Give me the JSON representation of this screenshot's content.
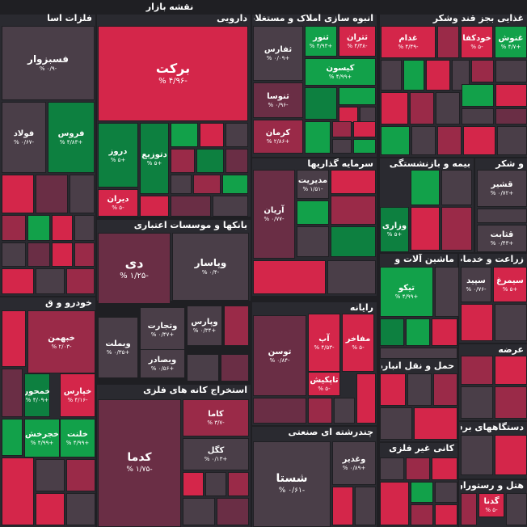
{
  "page_title": "نقشه بازار",
  "chart_data": {
    "type": "treemap",
    "colors": {
      "background": "#1f1f23",
      "neutral": "#4a3e48",
      "neg_strong": "#d4264a",
      "neg_mid": "#9a2a48",
      "neg_weak": "#6a2e45",
      "pos_strong": "#12a14a",
      "pos_mid": "#0d8040"
    },
    "sectors": [
      {
        "name": "فلزات اسا"
      },
      {
        "name": "دارویی"
      },
      {
        "name": "انبوه سازی املاک و مستغلات"
      },
      {
        "name": "غذایی بجز قند وشکر"
      },
      {
        "name": "بانکها و موسسات اعتباری"
      },
      {
        "name": "سرمایه گذاریها"
      },
      {
        "name": "بیمه و بازنشستگی"
      },
      {
        "name": "و شکر"
      },
      {
        "name": "ماشین آلات و"
      },
      {
        "name": "زراعت و خدمات"
      },
      {
        "name": "خودرو و ق"
      },
      {
        "name": "رایانه"
      },
      {
        "name": "عرضه"
      },
      {
        "name": "حمل و نقل انبارداری"
      },
      {
        "name": "استخراج کانه های فلزی"
      },
      {
        "name": "چندرشته ای صنعتی"
      },
      {
        "name": "کانی غیر فلزی"
      },
      {
        "name": "دستگاههای برقی"
      },
      {
        "name": "هتل و رستوران"
      }
    ],
    "tiles": [
      {
        "name": "برکت",
        "change": "-۴/۹۶ %",
        "color": "#d4264a"
      },
      {
        "name": "فسبزوار",
        "change": "-۰/۹ %",
        "color": "#4a3e48"
      },
      {
        "name": "فولاد",
        "change": "-۰/۶۷ %",
        "color": "#4a3e48"
      },
      {
        "name": "فروس",
        "change": "+۴/۸۳ %",
        "color": "#0d8040"
      },
      {
        "name": "دروز",
        "change": "+۵ %",
        "color": "#0d8040"
      },
      {
        "name": "دتوزیع",
        "change": "+۵ %",
        "color": "#0d8040"
      },
      {
        "name": "دیران",
        "change": "-۵ %",
        "color": "#d4264a"
      },
      {
        "name": "ثفارس",
        "change": "+۰/۰۹ %",
        "color": "#4a3e48"
      },
      {
        "name": "ثنور",
        "change": "+۴/۹۳ %",
        "color": "#12a14a"
      },
      {
        "name": "ثتران",
        "change": "-۴/۳۸ %",
        "color": "#d4264a"
      },
      {
        "name": "کیسون",
        "change": "+۴/۹۹ %",
        "color": "#12a14a"
      },
      {
        "name": "ثنوسا",
        "change": "-۰/۹۶ %",
        "color": "#6a2e45"
      },
      {
        "name": "کرمان",
        "change": "+۲/۸۶ %",
        "color": "#9a2a48"
      },
      {
        "name": "غدام",
        "change": "-۴/۴۹ %",
        "color": "#d4264a"
      },
      {
        "name": "خودکفا",
        "change": "-۵ %",
        "color": "#d4264a"
      },
      {
        "name": "غنوش",
        "change": "+۴/۷ %",
        "color": "#12a14a"
      },
      {
        "name": "دی",
        "change": "-۱/۲۵ %",
        "color": "#6a2e45"
      },
      {
        "name": "وپاسار",
        "change": "-۰/۴ %",
        "color": "#4a3e48"
      },
      {
        "name": "وبملت",
        "change": "+۰/۳۵ %",
        "color": "#4a3e48"
      },
      {
        "name": "وتجارت",
        "change": "+۰/۴۷ %",
        "color": "#4a3e48"
      },
      {
        "name": "وپارس",
        "change": "+۰/۳۴ %",
        "color": "#4a3e48"
      },
      {
        "name": "وبصادر",
        "change": "+۰/۵۶ %",
        "color": "#4a3e48"
      },
      {
        "name": "آریان",
        "change": "-۰/۷۷ %",
        "color": "#6a2e45"
      },
      {
        "name": "مدیریت",
        "change": "-۱/۵۱ %",
        "color": "#4a3e48"
      },
      {
        "name": "وزاری",
        "change": "+۵ %",
        "color": "#0d8040"
      },
      {
        "name": "قشیر",
        "change": "+۰/۷۲ %",
        "color": "#4a3e48"
      },
      {
        "name": "قثابت",
        "change": "+۰/۴۳ %",
        "color": "#4a3e48"
      },
      {
        "name": "تیکو",
        "change": "+۴/۹۹ %",
        "color": "#12a14a"
      },
      {
        "name": "سیمرغ",
        "change": "+۵ %",
        "color": "#d4264a"
      },
      {
        "name": "سپید",
        "change": "-۰/۷۶ %",
        "color": "#4a3e48"
      },
      {
        "name": "خبهمن",
        "change": "-۲/۰۳ %",
        "color": "#9a2a48"
      },
      {
        "name": "خمحور",
        "change": "+۴/۰۹ %",
        "color": "#0d8040"
      },
      {
        "name": "خپارس",
        "change": "-۴/۱۶ %",
        "color": "#d4264a"
      },
      {
        "name": "خجرخش",
        "change": "+۴/۹۹ %",
        "color": "#12a14a"
      },
      {
        "name": "خلنت",
        "change": "+۴/۹۹ %",
        "color": "#12a14a"
      },
      {
        "name": "توسن",
        "change": "-۰/۸۴ %",
        "color": "#6a2e45"
      },
      {
        "name": "آپ",
        "change": "-۴/۵۳ %",
        "color": "#d4264a"
      },
      {
        "name": "مفاخر",
        "change": "-۵ %",
        "color": "#d4264a"
      },
      {
        "name": "تاپکیش",
        "change": "-۵ %",
        "color": "#d4264a"
      },
      {
        "name": "کاما",
        "change": "-۳/۷ %",
        "color": "#9a2a48"
      },
      {
        "name": "کگل",
        "change": "+۰/۱۳ %",
        "color": "#4a3e48"
      },
      {
        "name": "کدما",
        "change": "-۱/۷۵ %",
        "color": "#6a2e45"
      },
      {
        "name": "شستا",
        "change": "-۰/۶۱ %",
        "color": "#4a3e48"
      },
      {
        "name": "وغدیر",
        "change": "+۰/۸۹ %",
        "color": "#4a3e48"
      },
      {
        "name": "گدنا",
        "change": "-۵ %",
        "color": "#d4264a"
      }
    ]
  }
}
